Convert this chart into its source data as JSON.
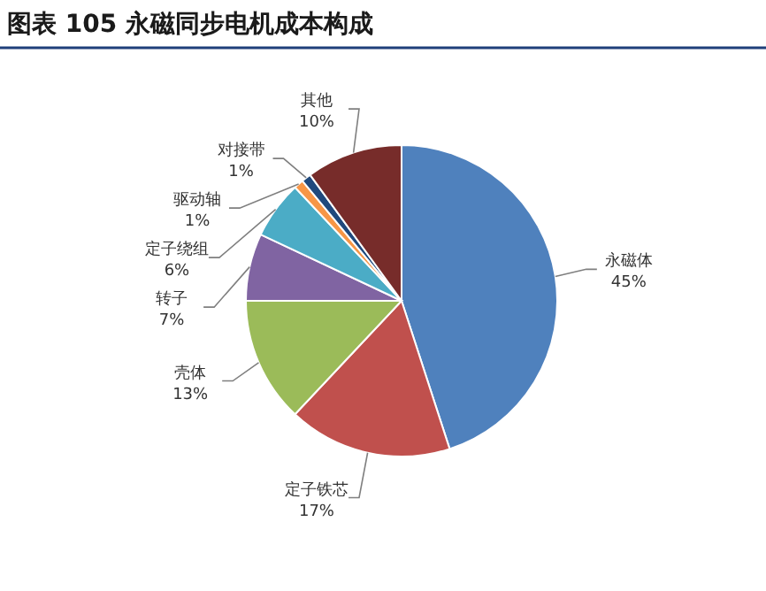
{
  "chart_data": {
    "type": "pie",
    "title": "图表 105 永磁同步电机成本构成",
    "categories": [
      "永磁体",
      "定子铁芯",
      "壳体",
      "转子",
      "定子绕组",
      "驱动轴",
      "对接带",
      "其他"
    ],
    "values": [
      45,
      17,
      13,
      7,
      6,
      1,
      1,
      10
    ],
    "value_labels": [
      "45%",
      "17%",
      "13%",
      "7%",
      "6%",
      "1%",
      "1%",
      "10%"
    ],
    "colors": [
      "#4f81bd",
      "#c0504d",
      "#9bbb59",
      "#8064a2",
      "#4bacc6",
      "#f79646",
      "#1f497d",
      "#772c2a"
    ]
  }
}
